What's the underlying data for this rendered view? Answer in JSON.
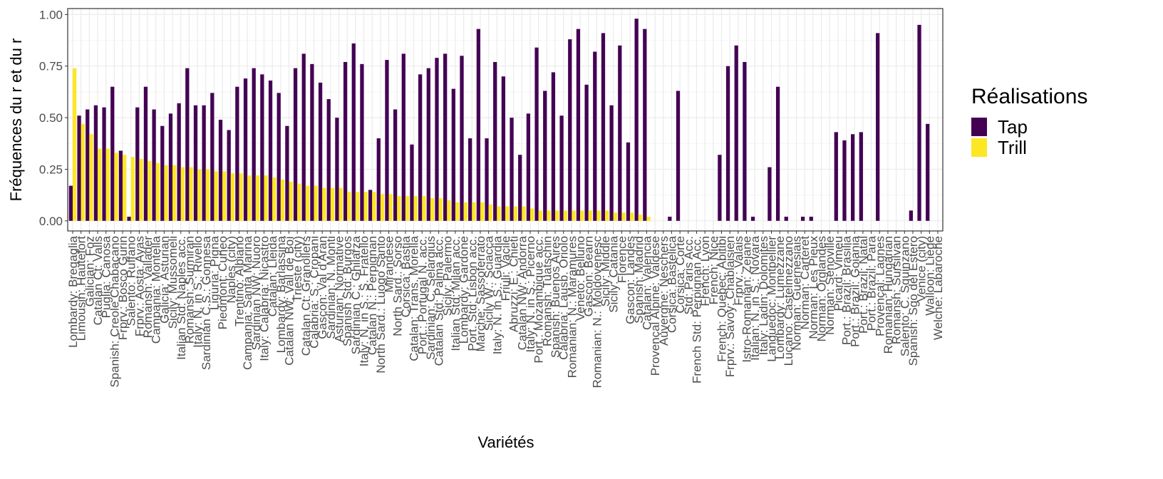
{
  "chart_data": {
    "type": "bar",
    "xlabel": "Variétés",
    "ylabel": "Fréquences du r et du r",
    "legend_title": "Réalisations",
    "categories": [
      "Lombardy: Bregaglia",
      "Limousin: Hautefort",
      "Galician: Foz",
      "Catalan Ct: Valls",
      "Puglia: Canosa",
      "Spanish: Creole Chabacano",
      "Frprv.: Bosco Gurin",
      "Salento: Ruffano",
      "Frprv.: Aosta: Ayas",
      "Romansh: Vallader",
      "Campania: Montella",
      "Galicia: Asturian",
      "Sicily: Mussomeli",
      "Italian Std: Naples acc.",
      "Romansh: Surmiran",
      "Italy: N. in S.: Rivello",
      "Sardinian C.S.: Gonnesa",
      "Liguria: Pigna",
      "Piedmont: Cuneo",
      "Naples (city)",
      "Trentino: Albiano",
      "Campania: Santa Marina",
      "Sardinian NW: Nuoro",
      "Italy: Calabria: Nicastro",
      "Catalan: Lleida",
      "Lombardy: Barlassina",
      "Catalan NW: Vall de Boí",
      "Trieste (city)",
      "Catalan Ct: Granollers",
      "Calabria: S.: Cropani",
      "Gascon: Val d'Aran",
      "Sardinian: N. Monti",
      "Asturian: Normative",
      "Spanish Std: Burgos",
      "Sardinian C.: Ghilarza",
      "Italy: N. in S.: S. Fratello",
      "Catalan N.: Perpignan",
      "North Sard.: Luogo Santo",
      "Mirandese",
      "North Sard.: Sorso",
      "Corsica: Bastia",
      "Catalan: Trans. Morella",
      "Port.: Portugal N. acc.",
      "Sardinian: C. Selargius",
      "Catalan Std: Palma acc.",
      "Sicily: Palermo",
      "Italian Std: Milan acc.",
      "Lombardy: Gardone",
      "Port. Std: Lisbon acc.",
      "Marche: Sassoferrato",
      "Sicily W.: Sciacca",
      "Italy: N. in S.: Guardia",
      "Friuli: Vacile",
      "Abruzzi: E.: Chieti",
      "Catalan NW: Andorra",
      "Italy: N. in S.: Picerno",
      "Port.: Mozambique acc.",
      "Romansh: Tuatschin",
      "Spanish: Buenos Aires",
      "Calabria: Lausb. Oriolo",
      "Romanian: N.: Maramures",
      "Veneto: Belluno",
      "Gascon: Bearn",
      "Romanian: N.: Moldovenesc",
      "Sicily: Middle",
      "Sicily: Catania",
      "Florence",
      "Gascon: Landes",
      "Spanish: Madrid",
      "Catalan: Valencia",
      "Provençal Alpine: Valdese",
      "Auvergne: Neschers",
      "Corsica: Bastelica",
      "Corsica: Corte",
      "Std: Paris Acc.",
      "French Std: Perpignan Acc.",
      "French: Lyon",
      "French: Nice",
      "French: Quebec: Abitibi",
      "Frprv.: Savoy: Chablaisien",
      "Frprv.: Valais",
      "Istro-Romanian: Zejane",
      "Italian: N. in S.: Novara",
      "Italy: Ladin: Dolomites",
      "Languedoc: Montpellier",
      "Lombardy: Lumezzane",
      "Lucano: Castelmezzano",
      "Norman: Guernesiais",
      "Norman: Carteret",
      "Norman: Les Pieux",
      "Norman: Orglandes",
      "Norman: Senoville",
      "Picard: Vimeu",
      "Port.: Brazil: Brasilia",
      "Port.: Brazil: Goiania",
      "Port.: Brazil: Natal",
      "Port.: Brazil: Para",
      "Provençal: Lagnes",
      "Romanian: Hungarian",
      "Romansh: Sursilvan",
      "Salento: C. Squinzano",
      "Spanish: Sgo del Estero",
      "Venice (city)",
      "Walloon: Liège",
      "Welche: Labaroche"
    ],
    "series": [
      {
        "name": "Tap",
        "color": "#440154",
        "values": [
          0.17,
          0.51,
          0.54,
          0.56,
          0.55,
          0.65,
          0.34,
          0.02,
          0.55,
          0.65,
          0.54,
          0.46,
          0.52,
          0.57,
          0.74,
          0.56,
          0.56,
          0.62,
          0.49,
          0.44,
          0.65,
          0.69,
          0.74,
          0.71,
          0.68,
          0.62,
          0.46,
          0.74,
          0.81,
          0.76,
          0.67,
          0.59,
          0.5,
          0.77,
          0.86,
          0.76,
          0.15,
          0.4,
          0.78,
          0.54,
          0.81,
          0.37,
          0.71,
          0.74,
          0.79,
          0.81,
          0.64,
          0.8,
          0.4,
          0.93,
          0.4,
          0.77,
          0.7,
          0.5,
          0.32,
          0.52,
          0.84,
          0.63,
          0.72,
          0.51,
          0.88,
          0.93,
          0.66,
          0.82,
          0.91,
          0.56,
          0.85,
          0.38,
          0.98,
          0.93,
          0,
          0,
          0.02,
          0.63,
          0,
          0,
          0,
          0,
          0.32,
          0.75,
          0.85,
          0.77,
          0.02,
          0,
          0.26,
          0.65,
          0.02,
          0,
          0.02,
          0.02,
          0,
          0,
          0.43,
          0.39,
          0.42,
          0.43,
          0,
          0.91,
          0,
          0,
          0,
          0.05,
          0.95,
          0.47,
          0
        ]
      },
      {
        "name": "Trill",
        "color": "#fde725",
        "values": [
          0.74,
          0.47,
          0.42,
          0.35,
          0.35,
          0.33,
          0.32,
          0.31,
          0.3,
          0.29,
          0.28,
          0.27,
          0.27,
          0.26,
          0.26,
          0.25,
          0.25,
          0.24,
          0.24,
          0.23,
          0.23,
          0.22,
          0.22,
          0.22,
          0.21,
          0.2,
          0.19,
          0.18,
          0.17,
          0.17,
          0.16,
          0.16,
          0.16,
          0.14,
          0.14,
          0.14,
          0.14,
          0.13,
          0.13,
          0.12,
          0.12,
          0.12,
          0.12,
          0.11,
          0.11,
          0.1,
          0.09,
          0.09,
          0.09,
          0.09,
          0.08,
          0.07,
          0.07,
          0.07,
          0.07,
          0.06,
          0.05,
          0.05,
          0.05,
          0.05,
          0.05,
          0.05,
          0.05,
          0.05,
          0.05,
          0.04,
          0.04,
          0.04,
          0.03,
          0.02,
          0,
          0,
          0,
          0,
          0,
          0,
          0,
          0,
          0,
          0,
          0,
          0,
          0,
          0,
          0,
          0,
          0,
          0,
          0,
          0,
          0,
          0,
          0,
          0,
          0,
          0,
          0,
          0,
          0,
          0,
          0,
          0,
          0,
          0,
          0
        ]
      }
    ],
    "ylim": [
      -0.049,
      1.029
    ],
    "yticks": [
      {
        "value": 0,
        "label": "0.00"
      },
      {
        "value": 0.25,
        "label": "0.25"
      },
      {
        "value": 0.5,
        "label": "0.50"
      },
      {
        "value": 0.75,
        "label": "0.75"
      },
      {
        "value": 1,
        "label": "1.00"
      }
    ],
    "grid": true
  }
}
